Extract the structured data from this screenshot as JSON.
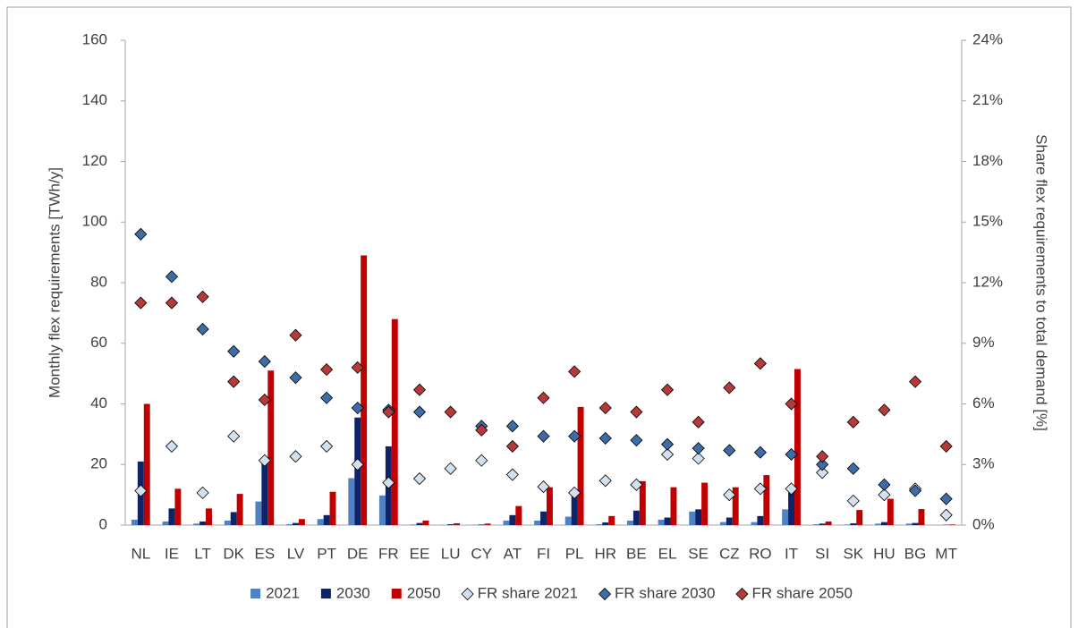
{
  "chart_data": {
    "type": "bar",
    "y_label": "Monthly flex requirements [TWh/y]",
    "y2_label": "Share flex requirements to total demand [%]",
    "categories": [
      "NL",
      "IE",
      "LT",
      "DK",
      "ES",
      "LV",
      "PT",
      "DE",
      "FR",
      "EE",
      "LU",
      "CY",
      "AT",
      "FI",
      "PL",
      "HR",
      "BE",
      "EL",
      "SE",
      "CZ",
      "RO",
      "IT",
      "SI",
      "SK",
      "HU",
      "BG",
      "MT"
    ],
    "ylim": [
      0,
      160
    ],
    "yticks": [
      0,
      20,
      40,
      60,
      80,
      100,
      120,
      140,
      160
    ],
    "y2lim": [
      0,
      24
    ],
    "y2ticks": [
      {
        "value": 0,
        "label": "0%"
      },
      {
        "value": 3,
        "label": "3%"
      },
      {
        "value": 6,
        "label": "6%"
      },
      {
        "value": 9,
        "label": "9%"
      },
      {
        "value": 12,
        "label": "12%"
      },
      {
        "value": 15,
        "label": "15%"
      },
      {
        "value": 18,
        "label": "18%"
      },
      {
        "value": 21,
        "label": "21%"
      },
      {
        "value": 24,
        "label": "24%"
      }
    ],
    "legend": "bottom",
    "series": [
      {
        "name": "2021",
        "type": "bar",
        "color": "#4f81c4",
        "values": [
          1.8,
          1.2,
          0.5,
          1.5,
          7.8,
          0.3,
          2,
          15.5,
          9.8,
          0.2,
          0.1,
          0.1,
          1.5,
          1.5,
          2.8,
          0.3,
          1.5,
          1.8,
          4.5,
          1,
          1,
          5.2,
          0.3,
          0.2,
          0.5,
          0.5,
          0.05
        ]
      },
      {
        "name": "2030",
        "type": "bar",
        "color": "#0f2468",
        "values": [
          21,
          5.5,
          1.2,
          4.3,
          21,
          0.7,
          3.3,
          35.5,
          26,
          0.7,
          0.3,
          0.2,
          3.3,
          4.5,
          10,
          0.9,
          4.8,
          2.5,
          5.2,
          2.5,
          3,
          12,
          0.5,
          0.6,
          1,
          0.7,
          0.1
        ]
      },
      {
        "name": "2050",
        "type": "bar",
        "color": "#c00000",
        "values": [
          40,
          12,
          5.5,
          10.3,
          51,
          2,
          11,
          89,
          68,
          1.5,
          0.6,
          0.5,
          6.3,
          12.5,
          39,
          3,
          14.5,
          12.5,
          14,
          12.5,
          16.5,
          51.5,
          1.2,
          5,
          8.7,
          5.3,
          0.2
        ]
      },
      {
        "name": "FR share 2021",
        "type": "scatter",
        "axis": "y2",
        "color": "#d3e0f0",
        "values": [
          1.7,
          3.9,
          1.6,
          4.4,
          3.2,
          3.4,
          3.9,
          3.0,
          2.1,
          2.3,
          2.8,
          3.2,
          2.5,
          1.9,
          1.6,
          2.2,
          2.0,
          3.5,
          3.3,
          1.5,
          1.8,
          1.8,
          2.6,
          1.2,
          1.5,
          1.8,
          0.5
        ]
      },
      {
        "name": "FR share 2030",
        "type": "scatter",
        "axis": "y2",
        "color": "#3d6ca6",
        "values": [
          14.4,
          12.3,
          9.7,
          8.6,
          8.1,
          7.3,
          6.3,
          5.8,
          5.7,
          5.6,
          null,
          4.9,
          4.9,
          4.4,
          4.4,
          4.3,
          4.2,
          4.0,
          3.8,
          3.7,
          3.6,
          3.5,
          3.0,
          2.8,
          2.0,
          1.7,
          1.3
        ]
      },
      {
        "name": "FR share 2050",
        "type": "scatter",
        "axis": "y2",
        "color": "#b53a3a",
        "values": [
          11.0,
          11.0,
          11.3,
          7.1,
          6.2,
          9.4,
          7.7,
          7.8,
          5.6,
          6.7,
          5.6,
          4.7,
          3.9,
          6.3,
          7.6,
          5.8,
          5.6,
          6.7,
          5.1,
          6.8,
          8.0,
          6.0,
          3.4,
          5.1,
          5.7,
          7.1,
          3.9
        ]
      }
    ]
  }
}
